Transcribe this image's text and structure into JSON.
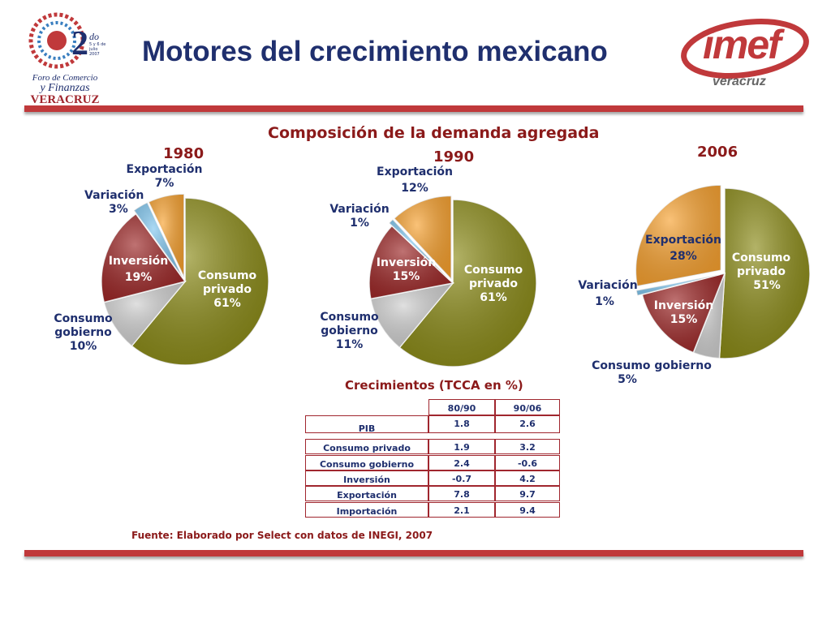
{
  "title": "Motores del crecimiento mexicano",
  "logo_left": {
    "number": "2",
    "ordinal": "do",
    "dates": "5 y 6 de julio 2007",
    "line1": "Foro de Comercio",
    "line2": "y Finanzas",
    "line3": "VERACRUZ"
  },
  "logo_right": {
    "brand": "imef",
    "city": "veracruz"
  },
  "colors": {
    "consumo_privado": "#8a8a16",
    "consumo_gobierno": "#cfcfcf",
    "inversion": "#9c2626",
    "variacion": "#7fc6ef",
    "exportacion": "#f7a12f",
    "accent": "#c0393b",
    "navy": "#1f2f6e"
  },
  "chart_data": [
    {
      "type": "pie",
      "title": "1980",
      "slices": [
        {
          "name": "Consumo privado",
          "value": 61,
          "label_line1": "Consumo",
          "label_line2": "privado",
          "pct": "61%"
        },
        {
          "name": "Consumo gobierno",
          "value": 10,
          "label_line1": "Consumo",
          "label_line2": "gobierno",
          "pct": "10%"
        },
        {
          "name": "Inversión",
          "value": 19,
          "label_line1": "Inversión",
          "pct": "19%"
        },
        {
          "name": "Variación",
          "value": 3,
          "label_line1": "Variación",
          "pct": "3%"
        },
        {
          "name": "Exportación",
          "value": 7,
          "label_line1": "Exportación",
          "pct": "7%"
        }
      ]
    },
    {
      "type": "pie",
      "title": "1990",
      "slices": [
        {
          "name": "Consumo privado",
          "value": 61,
          "label_line1": "Consumo",
          "label_line2": "privado",
          "pct": "61%"
        },
        {
          "name": "Consumo gobierno",
          "value": 11,
          "label_line1": "Consumo",
          "label_line2": "gobierno",
          "pct": "11%"
        },
        {
          "name": "Inversión",
          "value": 15,
          "label_line1": "Inversión",
          "pct": "15%"
        },
        {
          "name": "Variación",
          "value": 1,
          "label_line1": "Variación",
          "pct": "1%"
        },
        {
          "name": "Exportación",
          "value": 12,
          "label_line1": "Exportación",
          "pct": "12%"
        }
      ]
    },
    {
      "type": "pie",
      "title": "2006",
      "slices": [
        {
          "name": "Consumo privado",
          "value": 51,
          "label_line1": "Consumo",
          "label_line2": "privado",
          "pct": "51%"
        },
        {
          "name": "Consumo gobierno",
          "value": 5,
          "label_line1": "Consumo gobierno",
          "pct": "5%"
        },
        {
          "name": "Inversión",
          "value": 15,
          "label_line1": "Inversión",
          "pct": "15%"
        },
        {
          "name": "Variación",
          "value": 1,
          "label_line1": "Variación",
          "pct": "1%"
        },
        {
          "name": "Exportación",
          "value": 28,
          "label_line1": "Exportación",
          "pct": "28%"
        }
      ]
    },
    {
      "type": "table",
      "title": "Crecimientos (TCCA en %)",
      "columns": [
        "80/90",
        "90/06"
      ],
      "rows": [
        {
          "name": "PIB",
          "values": [
            "1.8",
            "2.6"
          ]
        },
        {
          "name": "Consumo privado",
          "values": [
            "1.9",
            "3.2"
          ]
        },
        {
          "name": "Consumo gobierno",
          "values": [
            "2.4",
            "-0.6"
          ]
        },
        {
          "name": "Inversión",
          "values": [
            "-0.7",
            "4.2"
          ]
        },
        {
          "name": "Exportación",
          "values": [
            "7.8",
            "9.7"
          ]
        },
        {
          "name": "Importación",
          "values": [
            "2.1",
            "9.4"
          ]
        }
      ]
    }
  ],
  "subtitle": "Composición de la demanda agregada",
  "source": "Fuente: Elaborado por Select con datos de INEGI, 2007"
}
